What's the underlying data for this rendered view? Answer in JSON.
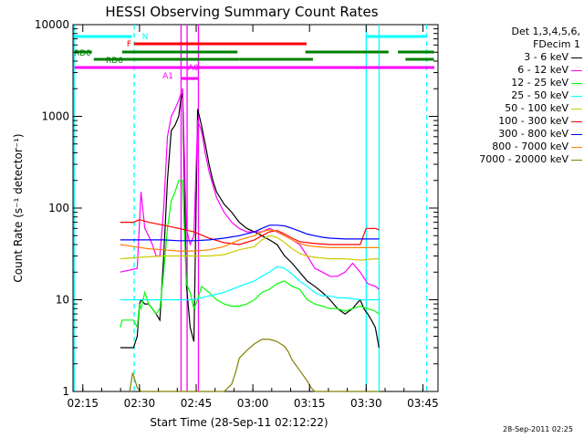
{
  "chart_data": {
    "type": "line",
    "title": "HESSI Observing Summary Count Rates",
    "xlabel": "Start Time (28-Sep-11 02:12:22)",
    "ylabel": "Count Rate (s⁻¹ detector⁻¹)",
    "x_unit": "minutes since 02:12:22",
    "xlim": [
      0,
      96.6
    ],
    "ylim": [
      1,
      10000
    ],
    "y_scale": "log",
    "x_tick_labels": [
      "02:15",
      "02:30",
      "02:45",
      "03:00",
      "03:15",
      "03:30",
      "03:45"
    ],
    "x_tick_values": [
      2.6,
      17.6,
      32.6,
      47.6,
      62.6,
      77.6,
      92.6
    ],
    "y_tick_labels": [
      "1",
      "10",
      "100",
      "1000",
      "10000"
    ],
    "y_tick_values": [
      1,
      10,
      100,
      1000,
      10000
    ],
    "grid": false,
    "legend_position": "right",
    "legend_header": [
      "Det 1,3,4,5,6,",
      "FDecim 1"
    ],
    "series": [
      {
        "name": "3 - 6 keV",
        "color": "#000000",
        "x": [
          12.5,
          13,
          14,
          15,
          16,
          17,
          17.6,
          18,
          19,
          20,
          21,
          22,
          23,
          24,
          25,
          26,
          27,
          28,
          28.5,
          29,
          30,
          31,
          32,
          33,
          34,
          35,
          36,
          37,
          38,
          40,
          42,
          44,
          46,
          48,
          50,
          52,
          54,
          56,
          58,
          60,
          62,
          64,
          66,
          67,
          68,
          70,
          72,
          74,
          75,
          76,
          77,
          78,
          79,
          80,
          81
        ],
        "y": [
          3,
          3,
          3,
          3,
          3,
          4,
          9,
          10,
          9,
          9,
          8,
          7,
          6,
          30,
          200,
          700,
          800,
          1000,
          1500,
          1800,
          15,
          5,
          3.5,
          1200,
          800,
          500,
          300,
          200,
          150,
          110,
          90,
          70,
          60,
          55,
          50,
          45,
          40,
          30,
          25,
          20,
          16,
          14,
          12,
          11,
          10,
          8,
          7,
          8,
          9,
          10,
          8,
          7,
          6,
          5,
          3
        ]
      },
      {
        "name": "6 - 12 keV",
        "color": "#ff00ff",
        "x": [
          12.5,
          17,
          17.6,
          18,
          19,
          20,
          21,
          22,
          23,
          24,
          25,
          26,
          27,
          28,
          29,
          30,
          31,
          32,
          33,
          34,
          35,
          36,
          38,
          40,
          42,
          44,
          46,
          48,
          50,
          52,
          54,
          56,
          58,
          60,
          62,
          64,
          66,
          68,
          70,
          72,
          74,
          76,
          78,
          80,
          81
        ],
        "y": [
          20,
          22,
          70,
          150,
          60,
          50,
          40,
          30,
          30,
          100,
          600,
          1000,
          1200,
          1500,
          2000,
          60,
          40,
          50,
          900,
          700,
          400,
          250,
          130,
          90,
          70,
          60,
          55,
          55,
          55,
          60,
          55,
          50,
          45,
          40,
          30,
          22,
          20,
          18,
          18,
          20,
          25,
          20,
          15,
          14,
          13
        ]
      },
      {
        "name": "12 - 25 keV",
        "color": "#00ff00",
        "x": [
          12.5,
          13,
          14,
          15,
          16,
          17,
          17.6,
          18,
          19,
          20,
          21,
          22,
          23,
          24,
          25,
          26,
          27,
          28,
          29,
          30,
          31,
          32,
          33,
          34,
          36,
          38,
          40,
          42,
          44,
          46,
          48,
          50,
          52,
          54,
          56,
          58,
          60,
          62,
          64,
          66,
          68,
          70,
          72,
          74,
          76,
          78,
          80,
          81
        ],
        "y": [
          5,
          6,
          6,
          6,
          6,
          5,
          9,
          8,
          12,
          9,
          8,
          7,
          8,
          20,
          60,
          120,
          150,
          200,
          200,
          15,
          12,
          8,
          10,
          14,
          12,
          10,
          9,
          8.5,
          8.5,
          9,
          10,
          12,
          13,
          15,
          16,
          14,
          13,
          10,
          9,
          8.5,
          8,
          8,
          7.5,
          8,
          8.5,
          8,
          7.5,
          7
        ]
      },
      {
        "name": "25 - 50 keV",
        "color": "#00ffff",
        "x": [
          12.5,
          17.6,
          20,
          24,
          28,
          32,
          36,
          40,
          44,
          48,
          50,
          52,
          54,
          56,
          58,
          60,
          62,
          64,
          66,
          68,
          70,
          72,
          76,
          80,
          81
        ],
        "y": [
          10,
          10,
          10,
          10,
          10,
          10,
          11,
          12,
          14,
          16,
          18,
          20,
          23,
          22,
          19,
          16,
          14,
          12,
          11,
          11,
          10.5,
          10.5,
          10,
          10,
          10
        ]
      },
      {
        "name": "50 - 100 keV",
        "color": "#cccc00",
        "x": [
          12.5,
          17.6,
          24,
          30,
          36,
          40,
          44,
          48,
          50,
          52,
          54,
          56,
          58,
          60,
          62,
          64,
          68,
          72,
          76,
          80,
          81
        ],
        "y": [
          28,
          29,
          30,
          30,
          30,
          31,
          35,
          38,
          45,
          50,
          48,
          42,
          36,
          32,
          30,
          29,
          28,
          28,
          27,
          28,
          28
        ]
      },
      {
        "name": "100 - 300 keV",
        "color": "#ff0000",
        "x": [
          12.5,
          16,
          17.6,
          20,
          24,
          28,
          32,
          36,
          40,
          44,
          48,
          50,
          52,
          54,
          56,
          58,
          60,
          62,
          64,
          68,
          72,
          76,
          77.6,
          80,
          81
        ],
        "y": [
          70,
          70,
          75,
          70,
          65,
          60,
          55,
          47,
          42,
          40,
          45,
          50,
          55,
          57,
          52,
          47,
          43,
          42,
          41,
          40,
          40,
          40,
          60,
          60,
          58
        ]
      },
      {
        "name": "300 - 800 keV",
        "color": "#0000ff",
        "x": [
          12.5,
          16,
          20,
          24,
          28,
          32,
          36,
          40,
          44,
          48,
          50,
          52,
          54,
          56,
          58,
          60,
          62,
          64,
          66,
          68,
          72,
          76,
          80,
          81
        ],
        "y": [
          45,
          45,
          45,
          45,
          44,
          44,
          45,
          47,
          50,
          55,
          60,
          65,
          65,
          64,
          60,
          56,
          52,
          50,
          48,
          47,
          46,
          46,
          46,
          46
        ]
      },
      {
        "name": "800 - 7000 keV",
        "color": "#ff8000",
        "x": [
          12.5,
          16,
          20,
          24,
          28,
          32,
          36,
          40,
          44,
          48,
          50,
          52,
          54,
          56,
          58,
          60,
          62,
          64,
          68,
          72,
          76,
          80,
          81
        ],
        "y": [
          40,
          38,
          36,
          35,
          34,
          34,
          35,
          38,
          45,
          50,
          55,
          58,
          56,
          50,
          45,
          41,
          39,
          38,
          37,
          37,
          37,
          37,
          37
        ]
      },
      {
        "name": "7000 - 20000 keV",
        "color": "#808000",
        "x": [
          15,
          15.8,
          17,
          18,
          40,
          42,
          43,
          44,
          46,
          48,
          50,
          52,
          54,
          56,
          57,
          58,
          60,
          62,
          63,
          64,
          80,
          81
        ],
        "y": [
          1,
          1.6,
          1.1,
          1,
          1,
          1.2,
          1.6,
          2.3,
          2.8,
          3.3,
          3.7,
          3.7,
          3.5,
          3.1,
          2.7,
          2.2,
          1.7,
          1.3,
          1.1,
          1,
          1,
          1
        ]
      }
    ],
    "state_bars": [
      {
        "label": "N",
        "color": "#00ffff",
        "segments": [
          [
            0.4,
            15.6
          ],
          [
            77.8,
            93.5
          ]
        ]
      },
      {
        "label": "F",
        "color": "#ff0000",
        "segments": [
          [
            16.2,
            61.8
          ]
        ]
      },
      {
        "label": "RD0",
        "color": "#008000",
        "segments": [
          [
            0.4,
            5
          ],
          [
            13,
            43.5
          ],
          [
            61.5,
            83.5
          ],
          [
            86,
            95.5
          ]
        ]
      },
      {
        "label": "RD6",
        "color": "#008000",
        "segments": [
          [
            5.5,
            44
          ],
          [
            44,
            63.5
          ],
          [
            88,
            95.5
          ]
        ]
      },
      {
        "label": "",
        "color": "#ff00ff",
        "segments": [
          [
            0.4,
            95.6
          ]
        ]
      },
      {
        "label": "A1",
        "color": "#ff00ff",
        "segments": [
          [
            28.6,
            30.2
          ]
        ]
      },
      {
        "label": "A0",
        "color": "#ff00ff",
        "segments": [
          [
            30.2,
            33.2
          ]
        ]
      }
    ],
    "vertical_markers": [
      {
        "x": 0.3,
        "color": "#00ffff",
        "style": "solid"
      },
      {
        "x": 16.2,
        "color": "#00ffff",
        "style": "dashed"
      },
      {
        "x": 77.6,
        "color": "#00ffff",
        "style": "solid"
      },
      {
        "x": 81,
        "color": "#00ffff",
        "style": "solid"
      },
      {
        "x": 93.6,
        "color": "#00ffff",
        "style": "dashed"
      },
      {
        "x": 28.6,
        "color": "#ff00ff",
        "style": "solid"
      },
      {
        "x": 30.2,
        "color": "#ff00ff",
        "style": "solid"
      },
      {
        "x": 33.2,
        "color": "#ff00ff",
        "style": "solid"
      }
    ],
    "timestamp": "28-Sep-2011 02:25"
  }
}
